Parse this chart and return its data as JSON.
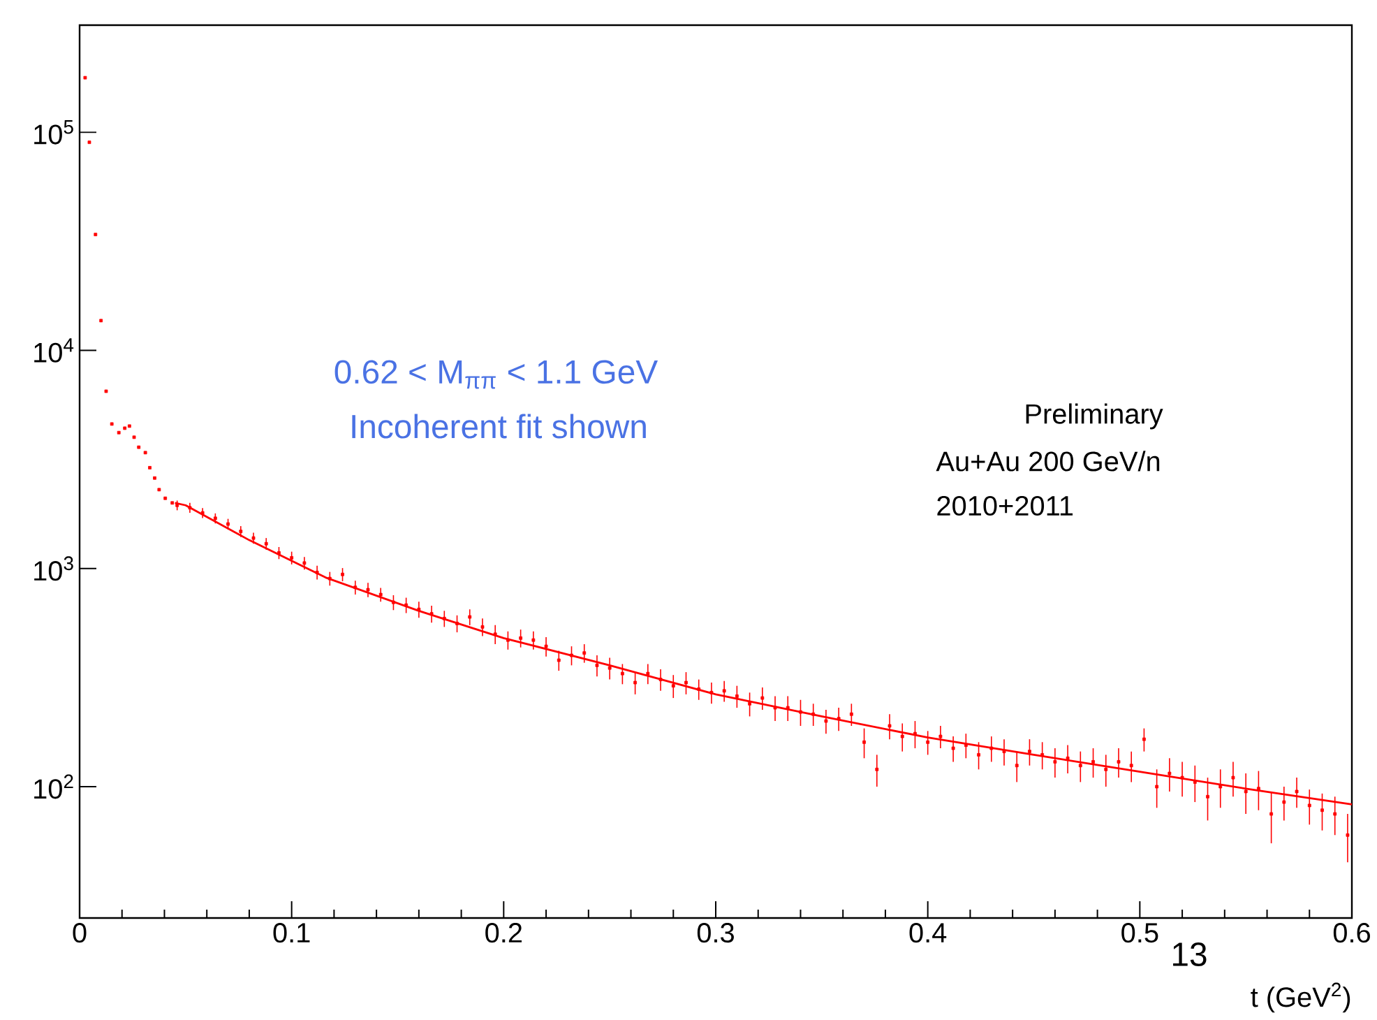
{
  "chart_data": {
    "type": "scatter",
    "xlabel": "t (GeV$^{2}$)",
    "annotations": [
      "0.62 < M$_{ππ}$ < 1.1 GeV",
      "Incoherent fit shown",
      "Preliminary",
      "Au+Au 200 GeV/n",
      "2010+2011",
      "13"
    ],
    "xlim": [
      0,
      0.6
    ],
    "xticks": [
      0,
      0.1,
      0.2,
      0.3,
      0.4,
      0.5,
      0.6
    ],
    "ylim": [
      25,
      310000
    ],
    "yticks": [
      {
        "value": 100,
        "label": "10$^{2}$"
      },
      {
        "value": 1000,
        "label": "10$^{3}$"
      },
      {
        "value": 10000,
        "label": "10$^{4}$"
      },
      {
        "value": 100000,
        "label": "10$^{5}$"
      }
    ],
    "log": "y",
    "grid": false,
    "series": [
      {
        "color": "#ff0000",
        "marker": "square",
        "x": [
          0.0026,
          0.0046,
          0.0075,
          0.0101,
          0.0125,
          0.0152,
          0.0185,
          0.0213,
          0.0235,
          0.0257,
          0.0279,
          0.031,
          0.0331,
          0.0354,
          0.0375,
          0.0404,
          0.0437,
          0.046,
          0.052,
          0.058,
          0.064,
          0.07,
          0.076,
          0.082,
          0.088,
          0.094,
          0.1,
          0.106,
          0.112,
          0.118,
          0.124,
          0.13,
          0.136,
          0.142,
          0.148,
          0.154,
          0.16,
          0.166,
          0.172,
          0.178,
          0.184,
          0.19,
          0.196,
          0.202,
          0.208,
          0.214,
          0.22,
          0.226,
          0.232,
          0.238,
          0.244,
          0.25,
          0.256,
          0.262,
          0.268,
          0.274,
          0.28,
          0.286,
          0.292,
          0.298,
          0.304,
          0.31,
          0.316,
          0.322,
          0.328,
          0.334,
          0.34,
          0.346,
          0.352,
          0.358,
          0.364,
          0.37,
          0.376,
          0.382,
          0.388,
          0.394,
          0.4,
          0.406,
          0.412,
          0.418,
          0.424,
          0.43,
          0.436,
          0.442,
          0.448,
          0.454,
          0.46,
          0.466,
          0.472,
          0.478,
          0.484,
          0.49,
          0.496,
          0.502,
          0.508,
          0.514,
          0.52,
          0.526,
          0.532,
          0.538,
          0.544,
          0.55,
          0.556,
          0.562,
          0.568,
          0.574,
          0.58,
          0.586,
          0.592,
          0.598
        ],
        "values": [
          178000,
          90000,
          34000,
          13700,
          6500,
          4600,
          4200,
          4400,
          4500,
          4000,
          3600,
          3400,
          2900,
          2600,
          2300,
          2100,
          2000,
          1950,
          1900,
          1800,
          1700,
          1600,
          1480,
          1380,
          1300,
          1180,
          1120,
          1060,
          960,
          900,
          940,
          820,
          800,
          760,
          700,
          680,
          650,
          620,
          590,
          560,
          600,
          540,
          500,
          470,
          480,
          470,
          440,
          380,
          400,
          410,
          360,
          350,
          330,
          300,
          330,
          310,
          290,
          300,
          280,
          270,
          275,
          260,
          240,
          255,
          230,
          230,
          220,
          215,
          200,
          205,
          215,
          160,
          120,
          190,
          170,
          175,
          160,
          170,
          150,
          155,
          140,
          150,
          145,
          125,
          145,
          140,
          130,
          135,
          125,
          130,
          120,
          130,
          125,
          165,
          100,
          115,
          110,
          105,
          90,
          100,
          110,
          95,
          98,
          75,
          85,
          95,
          82,
          78,
          75,
          60
        ],
        "errors": [
          null,
          null,
          null,
          null,
          null,
          null,
          null,
          null,
          null,
          null,
          null,
          null,
          null,
          null,
          null,
          null,
          null,
          100,
          100,
          95,
          90,
          90,
          85,
          80,
          80,
          75,
          75,
          70,
          70,
          65,
          65,
          60,
          60,
          55,
          55,
          55,
          55,
          55,
          50,
          50,
          50,
          50,
          50,
          45,
          45,
          45,
          45,
          40,
          40,
          40,
          40,
          40,
          35,
          35,
          35,
          35,
          35,
          35,
          30,
          30,
          30,
          30,
          30,
          30,
          30,
          30,
          30,
          25,
          25,
          25,
          25,
          25,
          20,
          25,
          25,
          25,
          20,
          20,
          20,
          20,
          20,
          20,
          20,
          20,
          20,
          20,
          20,
          20,
          20,
          20,
          20,
          20,
          20,
          20,
          20,
          20,
          20,
          20,
          20,
          20,
          20,
          20,
          20,
          20,
          15,
          15,
          15,
          15,
          15,
          15
        ]
      },
      {
        "type": "line",
        "color": "#ff0000",
        "line_style": "solid",
        "marker": "none",
        "x": [
          0.045,
          0.05,
          0.08,
          0.116,
          0.16,
          0.2,
          0.25,
          0.3,
          0.35,
          0.4,
          0.45,
          0.5,
          0.55,
          0.6
        ],
        "values": [
          2000,
          1950,
          1350,
          910,
          640,
          480,
          360,
          265,
          210,
          168,
          140,
          117,
          98,
          83
        ]
      }
    ]
  }
}
